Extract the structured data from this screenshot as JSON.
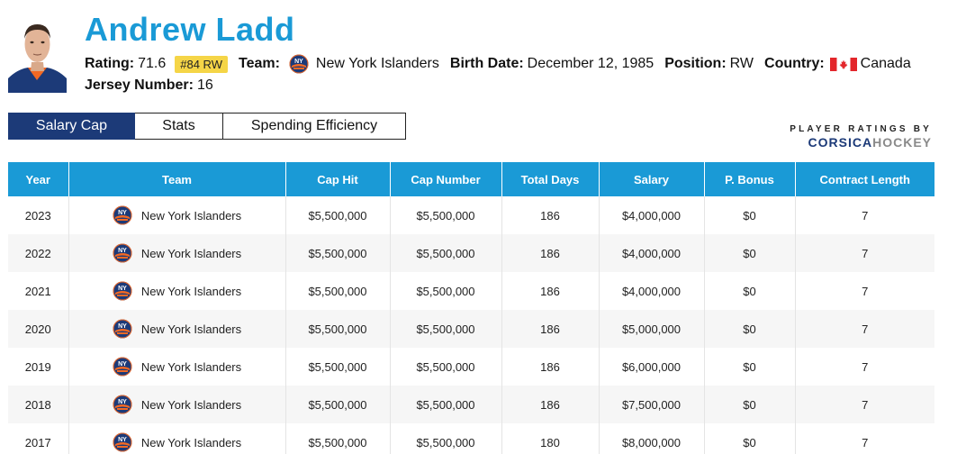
{
  "player": {
    "name": "Andrew Ladd",
    "rating_label": "Rating:",
    "rating": "71.6",
    "rank_badge": "#84 RW",
    "team_label": "Team:",
    "team": "New York Islanders",
    "birth_label": "Birth Date:",
    "birth_date": "December 12, 1985",
    "position_label": "Position:",
    "position": "RW",
    "country_label": "Country:",
    "country": "Canada",
    "jersey_label": "Jersey Number:",
    "jersey": "16",
    "team_logo_icon": "islanders-logo-icon",
    "flag_icon": "canada-flag-icon"
  },
  "tabs": [
    {
      "label": "Salary Cap",
      "active": true
    },
    {
      "label": "Stats",
      "active": false
    },
    {
      "label": "Spending Efficiency",
      "active": false
    }
  ],
  "brand": {
    "top": "PLAYER RATINGS BY",
    "word1": "CORSICA",
    "word2": "HOCKEY"
  },
  "colors": {
    "accent": "#1a9ad6",
    "navy": "#1c3a78",
    "badge": "#f5d547",
    "islanders_orange": "#f26924"
  },
  "table": {
    "headers": [
      "Year",
      "Team",
      "Cap Hit",
      "Cap Number",
      "Total Days",
      "Salary",
      "P. Bonus",
      "Contract Length"
    ],
    "rows": [
      {
        "year": "2023",
        "team": "New York Islanders",
        "cap_hit": "$5,500,000",
        "cap_number": "$5,500,000",
        "total_days": "186",
        "salary": "$4,000,000",
        "p_bonus": "$0",
        "contract_length": "7"
      },
      {
        "year": "2022",
        "team": "New York Islanders",
        "cap_hit": "$5,500,000",
        "cap_number": "$5,500,000",
        "total_days": "186",
        "salary": "$4,000,000",
        "p_bonus": "$0",
        "contract_length": "7"
      },
      {
        "year": "2021",
        "team": "New York Islanders",
        "cap_hit": "$5,500,000",
        "cap_number": "$5,500,000",
        "total_days": "186",
        "salary": "$4,000,000",
        "p_bonus": "$0",
        "contract_length": "7"
      },
      {
        "year": "2020",
        "team": "New York Islanders",
        "cap_hit": "$5,500,000",
        "cap_number": "$5,500,000",
        "total_days": "186",
        "salary": "$5,000,000",
        "p_bonus": "$0",
        "contract_length": "7"
      },
      {
        "year": "2019",
        "team": "New York Islanders",
        "cap_hit": "$5,500,000",
        "cap_number": "$5,500,000",
        "total_days": "186",
        "salary": "$6,000,000",
        "p_bonus": "$0",
        "contract_length": "7"
      },
      {
        "year": "2018",
        "team": "New York Islanders",
        "cap_hit": "$5,500,000",
        "cap_number": "$5,500,000",
        "total_days": "186",
        "salary": "$7,500,000",
        "p_bonus": "$0",
        "contract_length": "7"
      },
      {
        "year": "2017",
        "team": "New York Islanders",
        "cap_hit": "$5,500,000",
        "cap_number": "$5,500,000",
        "total_days": "180",
        "salary": "$8,000,000",
        "p_bonus": "$0",
        "contract_length": "7"
      }
    ]
  }
}
